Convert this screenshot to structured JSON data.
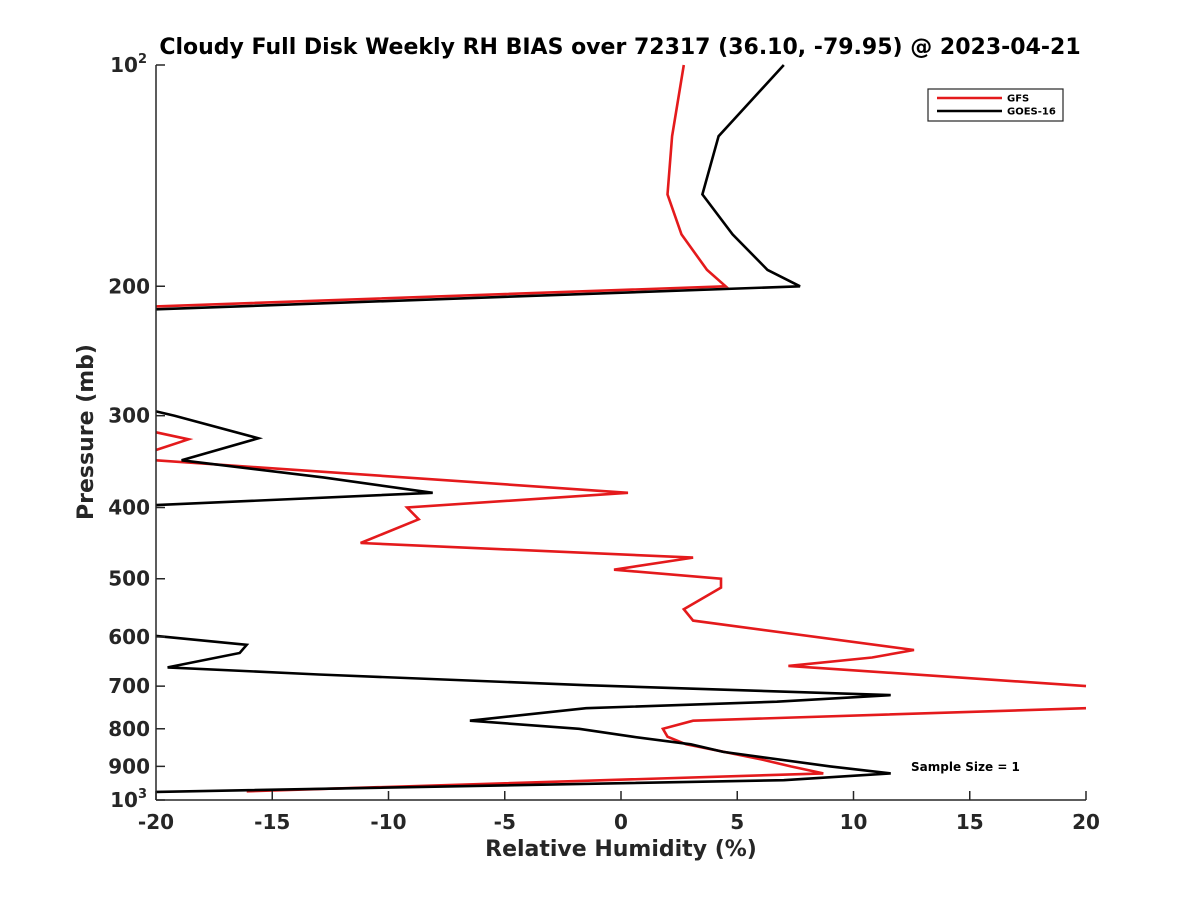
{
  "chart_data": {
    "type": "line",
    "title": "Cloudy Full Disk Weekly RH BIAS over 72317 (36.10, -79.95) @ 2023-04-21",
    "xlabel": "Relative Humidity (%)",
    "ylabel": "Pressure (mb)",
    "xlim": [
      -20,
      20
    ],
    "ylim": [
      100,
      1000
    ],
    "y_scale": "log",
    "y_reversed": true,
    "grid": false,
    "legend_position": "top-right",
    "x_ticks": [
      -20,
      -15,
      -10,
      -5,
      0,
      5,
      10,
      15,
      20
    ],
    "x_tick_labels": [
      "-20",
      "-15",
      "-10",
      "-5",
      "0",
      "5",
      "10",
      "15",
      "20"
    ],
    "y_ticks": [
      {
        "value": 100,
        "base": "10",
        "exp": "2"
      },
      {
        "value": 200,
        "base": "200",
        "exp": ""
      },
      {
        "value": 300,
        "base": "300",
        "exp": ""
      },
      {
        "value": 400,
        "base": "400",
        "exp": ""
      },
      {
        "value": 500,
        "base": "500",
        "exp": ""
      },
      {
        "value": 600,
        "base": "600",
        "exp": ""
      },
      {
        "value": 700,
        "base": "700",
        "exp": ""
      },
      {
        "value": 800,
        "base": "800",
        "exp": ""
      },
      {
        "value": 900,
        "base": "900",
        "exp": ""
      },
      {
        "value": 1000,
        "base": "10",
        "exp": "3"
      }
    ],
    "annotation": "Sample Size = 1",
    "series": [
      {
        "name": "GFS",
        "color": "#e41a1c",
        "points": [
          [
            2.7,
            100
          ],
          [
            2.2,
            125
          ],
          [
            2.0,
            150
          ],
          [
            2.6,
            170
          ],
          [
            3.7,
            190
          ],
          [
            4.5,
            200
          ],
          [
            -20,
            213
          ],
          [
            null,
            null
          ],
          [
            -20,
            316
          ],
          [
            -18.6,
            323
          ],
          [
            -20,
            334
          ],
          [
            null,
            null
          ],
          [
            -20,
            345
          ],
          [
            0.3,
            382
          ],
          [
            -9.2,
            400
          ],
          [
            -8.7,
            415
          ],
          [
            -11.2,
            447
          ],
          [
            3.1,
            468
          ],
          [
            -0.3,
            486
          ],
          [
            4.3,
            500
          ],
          [
            4.3,
            514
          ],
          [
            2.7,
            550
          ],
          [
            3.1,
            570
          ],
          [
            12.6,
            625
          ],
          [
            10.8,
            640
          ],
          [
            7.2,
            657
          ],
          [
            20.0,
            700
          ],
          [
            null,
            null
          ],
          [
            20.0,
            750
          ],
          [
            3.1,
            780
          ],
          [
            1.8,
            800
          ],
          [
            2.0,
            820
          ],
          [
            2.8,
            840
          ],
          [
            6.0,
            880
          ],
          [
            7.3,
            900
          ],
          [
            8.7,
            920
          ],
          [
            -16.1,
            973
          ]
        ]
      },
      {
        "name": "GOES-16",
        "color": "#000000",
        "points": [
          [
            7.0,
            100
          ],
          [
            4.2,
            125
          ],
          [
            3.5,
            150
          ],
          [
            4.8,
            170
          ],
          [
            6.3,
            190
          ],
          [
            7.7,
            200
          ],
          [
            -20,
            215
          ],
          [
            null,
            null
          ],
          [
            -20,
            296
          ],
          [
            -19.2,
            300
          ],
          [
            -15.6,
            322
          ],
          [
            -18.9,
            345
          ],
          [
            -12.8,
            364
          ],
          [
            -8.1,
            382
          ],
          [
            -20,
            397
          ],
          [
            null,
            null
          ],
          [
            -20,
            598
          ],
          [
            -16.1,
            615
          ],
          [
            -16.4,
            631
          ],
          [
            -19.5,
            660
          ],
          [
            -13.0,
            675
          ],
          [
            -1.5,
            698
          ],
          [
            11.6,
            720
          ],
          [
            6.7,
            735
          ],
          [
            -1.5,
            750
          ],
          [
            -6.5,
            780
          ],
          [
            -1.8,
            800
          ],
          [
            0.5,
            820
          ],
          [
            3.0,
            840
          ],
          [
            4.4,
            860
          ],
          [
            9.0,
            900
          ],
          [
            11.6,
            920
          ],
          [
            7.0,
            940
          ],
          [
            -20,
            975
          ]
        ]
      }
    ]
  }
}
